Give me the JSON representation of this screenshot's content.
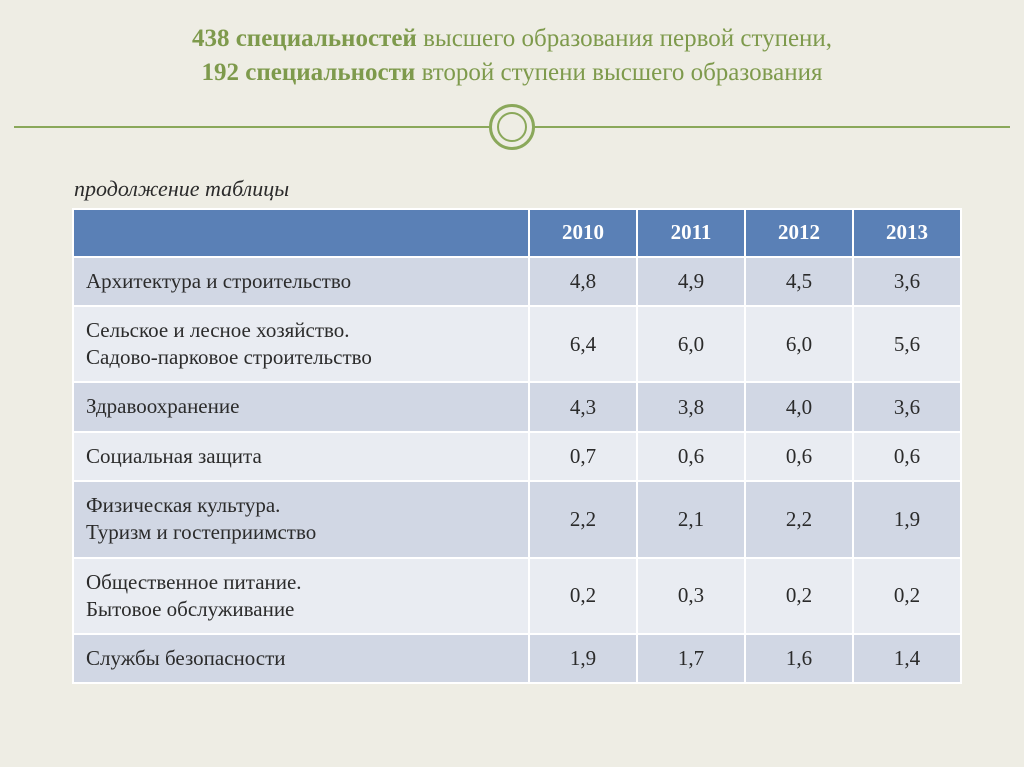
{
  "title": {
    "line1_bold": "438 специальностей",
    "line1_rest": " высшего образования первой ступени,",
    "line2_bold": "192 специальности",
    "line2_rest": " второй ступени высшего образования"
  },
  "subtitle": "продолжение таблицы",
  "table": {
    "columns": [
      "2010",
      "2011",
      "2012",
      "2013"
    ],
    "header_bg": "#5a80b6",
    "header_color": "#ffffff",
    "row_odd_bg": "#d1d7e4",
    "row_even_bg": "#e9ecf2",
    "border_color": "#ffffff",
    "rows": [
      {
        "label": "Архитектура и строительство",
        "values": [
          "4,8",
          "4,9",
          "4,5",
          "3,6"
        ]
      },
      {
        "label": "Сельское и лесное хозяйство.\nСадово-парковое строительство",
        "values": [
          "6,4",
          "6,0",
          "6,0",
          "5,6"
        ]
      },
      {
        "label": "Здравоохранение",
        "values": [
          "4,3",
          "3,8",
          "4,0",
          "3,6"
        ]
      },
      {
        "label": "Социальная защита",
        "values": [
          "0,7",
          "0,6",
          "0,6",
          "0,6"
        ]
      },
      {
        "label": "Физическая культура.\nТуризм и гостеприимство",
        "values": [
          "2,2",
          "2,1",
          "2,2",
          "1,9"
        ]
      },
      {
        "label": "Общественное питание.\nБытовое обслуживание",
        "values": [
          "0,2",
          "0,3",
          "0,2",
          "0,2"
        ]
      },
      {
        "label": "Службы безопасности",
        "values": [
          "1,9",
          "1,7",
          "1,6",
          "1,4"
        ]
      }
    ]
  },
  "accent_color": "#8aa85a",
  "title_color": "#7e9a4c",
  "background_color": "#eeede4"
}
